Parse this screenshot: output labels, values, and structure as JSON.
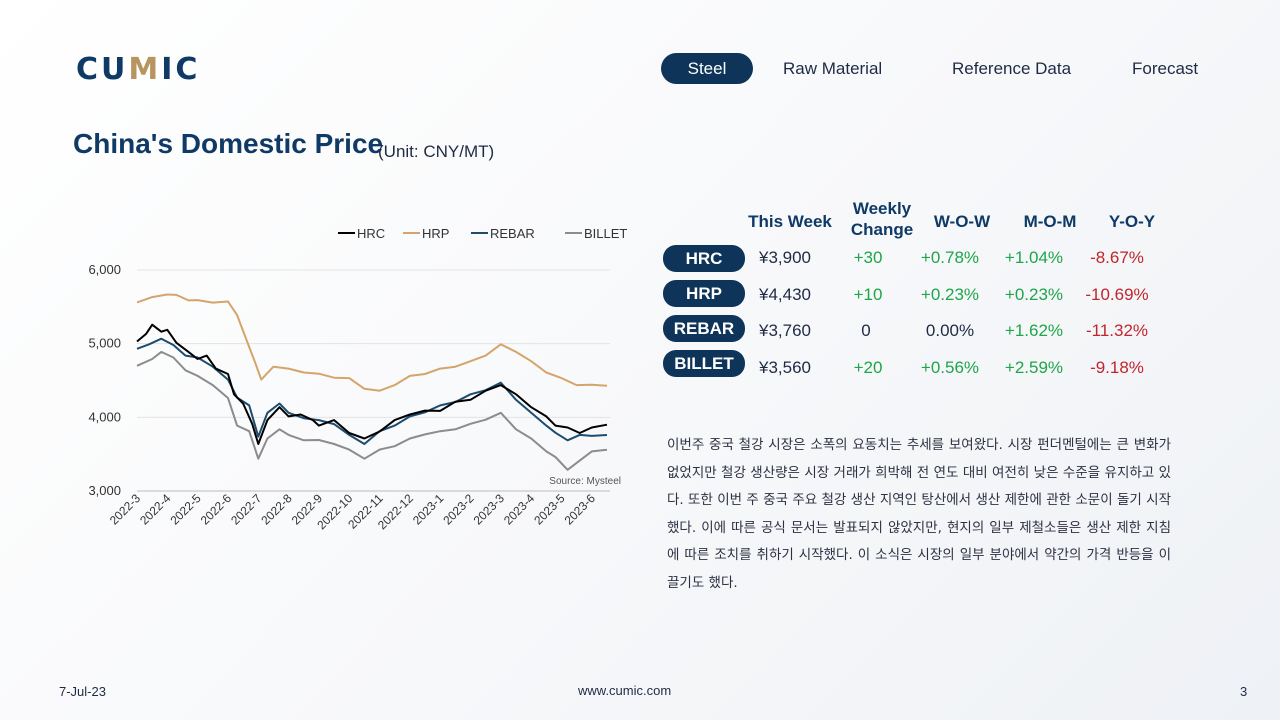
{
  "logo": {
    "text_a": "CU",
    "text_b": "M",
    "text_c": "IC"
  },
  "nav": {
    "items": [
      "Steel",
      "Raw Material",
      "Reference Data",
      "Forecast"
    ],
    "active": "Steel"
  },
  "page": {
    "title": "China's Domestic Price",
    "unit": "(Unit: CNY/MT)"
  },
  "chart_data": {
    "type": "line",
    "legend": [
      "HRC",
      "HRP",
      "REBAR",
      "BILLET"
    ],
    "legend_position": "top-right",
    "source": "Source: Mysteel",
    "ylim": [
      3000,
      6000
    ],
    "yticks": [
      "3,000",
      "4,000",
      "5,000",
      "6,000"
    ],
    "xticks": [
      "2022-3",
      "2022-4",
      "2022-5",
      "2022-6",
      "2022-7",
      "2022-8",
      "2022-9",
      "2022-10",
      "2022-11",
      "2022-12",
      "2023-1",
      "2023-2",
      "2023-3",
      "2023-4",
      "2023-5",
      "2023-6"
    ],
    "colors": {
      "HRC": "#000000",
      "HRP": "#d4a56a",
      "REBAR": "#1c4c6e",
      "BILLET": "#8c8c8c"
    },
    "series": [
      {
        "name": "HRC",
        "points": [
          [
            0,
            5030
          ],
          [
            0.3,
            5120
          ],
          [
            0.5,
            5270
          ],
          [
            0.8,
            5150
          ],
          [
            1,
            5200
          ],
          [
            1.3,
            5000
          ],
          [
            1.7,
            4900
          ],
          [
            2,
            4780
          ],
          [
            2.3,
            4850
          ],
          [
            2.6,
            4650
          ],
          [
            3,
            4600
          ],
          [
            3.2,
            4300
          ],
          [
            3.5,
            4200
          ],
          [
            3.8,
            3900
          ],
          [
            4,
            3650
          ],
          [
            4.3,
            3950
          ],
          [
            4.7,
            4150
          ],
          [
            5,
            4000
          ],
          [
            5.4,
            4050
          ],
          [
            5.8,
            3950
          ],
          [
            6,
            3900
          ],
          [
            6.5,
            3950
          ],
          [
            7,
            3800
          ],
          [
            7.5,
            3700
          ],
          [
            8,
            3820
          ],
          [
            8.5,
            3950
          ],
          [
            9,
            4050
          ],
          [
            9.5,
            4080
          ],
          [
            10,
            4100
          ],
          [
            10.5,
            4200
          ],
          [
            11,
            4250
          ],
          [
            11.5,
            4350
          ],
          [
            12,
            4450
          ],
          [
            12.5,
            4300
          ],
          [
            13,
            4150
          ],
          [
            13.5,
            4000
          ],
          [
            13.8,
            3900
          ],
          [
            14.2,
            3850
          ],
          [
            14.6,
            3800
          ],
          [
            15,
            3850
          ],
          [
            15.5,
            3900
          ]
        ]
      },
      {
        "name": "HRP",
        "points": [
          [
            0,
            5560
          ],
          [
            0.5,
            5620
          ],
          [
            1,
            5680
          ],
          [
            1.3,
            5650
          ],
          [
            1.7,
            5600
          ],
          [
            2,
            5580
          ],
          [
            2.5,
            5570
          ],
          [
            3,
            5560
          ],
          [
            3.3,
            5400
          ],
          [
            3.6,
            5050
          ],
          [
            3.9,
            4750
          ],
          [
            4.1,
            4500
          ],
          [
            4.5,
            4700
          ],
          [
            5,
            4650
          ],
          [
            5.5,
            4620
          ],
          [
            6,
            4580
          ],
          [
            6.5,
            4550
          ],
          [
            7,
            4520
          ],
          [
            7.5,
            4400
          ],
          [
            8,
            4350
          ],
          [
            8.5,
            4450
          ],
          [
            9,
            4550
          ],
          [
            9.5,
            4600
          ],
          [
            10,
            4650
          ],
          [
            10.5,
            4700
          ],
          [
            11,
            4750
          ],
          [
            11.5,
            4850
          ],
          [
            12,
            4980
          ],
          [
            12.5,
            4900
          ],
          [
            13,
            4750
          ],
          [
            13.5,
            4620
          ],
          [
            14,
            4520
          ],
          [
            14.5,
            4450
          ],
          [
            15,
            4430
          ],
          [
            15.5,
            4430
          ]
        ]
      },
      {
        "name": "REBAR",
        "points": [
          [
            0,
            4930
          ],
          [
            0.4,
            4980
          ],
          [
            0.8,
            5080
          ],
          [
            1.2,
            4970
          ],
          [
            1.6,
            4850
          ],
          [
            2,
            4800
          ],
          [
            2.5,
            4700
          ],
          [
            3,
            4500
          ],
          [
            3.3,
            4280
          ],
          [
            3.7,
            4150
          ],
          [
            4,
            3750
          ],
          [
            4.3,
            4050
          ],
          [
            4.7,
            4200
          ],
          [
            5,
            4050
          ],
          [
            5.5,
            4000
          ],
          [
            6,
            3950
          ],
          [
            6.5,
            3920
          ],
          [
            7,
            3750
          ],
          [
            7.5,
            3650
          ],
          [
            8,
            3800
          ],
          [
            8.5,
            3900
          ],
          [
            9,
            4000
          ],
          [
            9.5,
            4080
          ],
          [
            10,
            4150
          ],
          [
            10.5,
            4220
          ],
          [
            11,
            4300
          ],
          [
            11.5,
            4380
          ],
          [
            12,
            4460
          ],
          [
            12.5,
            4250
          ],
          [
            13,
            4050
          ],
          [
            13.5,
            3900
          ],
          [
            13.8,
            3780
          ],
          [
            14.2,
            3700
          ],
          [
            14.6,
            3750
          ],
          [
            15,
            3760
          ],
          [
            15.5,
            3760
          ]
        ]
      },
      {
        "name": "BILLET",
        "points": [
          [
            0,
            4700
          ],
          [
            0.5,
            4780
          ],
          [
            0.8,
            4900
          ],
          [
            1.2,
            4800
          ],
          [
            1.6,
            4650
          ],
          [
            2,
            4550
          ],
          [
            2.5,
            4450
          ],
          [
            3,
            4250
          ],
          [
            3.3,
            3900
          ],
          [
            3.7,
            3800
          ],
          [
            4,
            3450
          ],
          [
            4.3,
            3700
          ],
          [
            4.7,
            3850
          ],
          [
            5,
            3750
          ],
          [
            5.5,
            3700
          ],
          [
            6,
            3680
          ],
          [
            6.5,
            3650
          ],
          [
            7,
            3550
          ],
          [
            7.5,
            3450
          ],
          [
            8,
            3550
          ],
          [
            8.5,
            3620
          ],
          [
            9,
            3700
          ],
          [
            9.5,
            3780
          ],
          [
            10,
            3800
          ],
          [
            10.5,
            3850
          ],
          [
            11,
            3900
          ],
          [
            11.5,
            3980
          ],
          [
            12,
            4050
          ],
          [
            12.5,
            3850
          ],
          [
            13,
            3700
          ],
          [
            13.5,
            3550
          ],
          [
            13.8,
            3450
          ],
          [
            14.2,
            3300
          ],
          [
            14.6,
            3400
          ],
          [
            15,
            3550
          ],
          [
            15.5,
            3560
          ]
        ]
      }
    ]
  },
  "table": {
    "headers": {
      "this_week": "This Week",
      "weekly_1": "Weekly",
      "weekly_2": "Change",
      "wow": "W-O-W",
      "mom": "M-O-M",
      "yoy": "Y-O-Y"
    },
    "rows": [
      {
        "name": "HRC",
        "this_week": "¥3,900",
        "weekly_change": "+30",
        "wow": "+0.78%",
        "mom": "+1.04%",
        "yoy": "-8.67%"
      },
      {
        "name": "HRP",
        "this_week": "¥4,430",
        "weekly_change": "+10",
        "wow": "+0.23%",
        "mom": "+0.23%",
        "yoy": "-10.69%"
      },
      {
        "name": "REBAR",
        "this_week": "¥3,760",
        "weekly_change": "0",
        "wow": "0.00%",
        "mom": "+1.62%",
        "yoy": "-11.32%"
      },
      {
        "name": "BILLET",
        "this_week": "¥3,560",
        "weekly_change": "+20",
        "wow": "+0.56%",
        "mom": "+2.59%",
        "yoy": "-9.18%"
      }
    ]
  },
  "commentary": "이번주 중국 철강 시장은 소폭의 요동치는 추세를 보여왔다. 시장 펀더멘털에는 큰 변화가 없었지만 철강 생산량은 시장 거래가 희박해 전 연도 대비 여전히 낮은 수준을 유지하고 있다. 또한 이번 주 중국 주요 철강 생산 지역인 탕산에서 생산 제한에 관한 소문이 돌기 시작했다. 이에 따른 공식 문서는 발표되지 않았지만, 현지의 일부 제철소들은 생산 제한 지침에 따른 조치를 취하기 시작했다. 이 소식은 시장의 일부 분야에서 약간의 가격 반등을 이끌기도 했다.",
  "footer": {
    "date": "7-Jul-23",
    "url": "www.cumic.com",
    "page": "3"
  }
}
